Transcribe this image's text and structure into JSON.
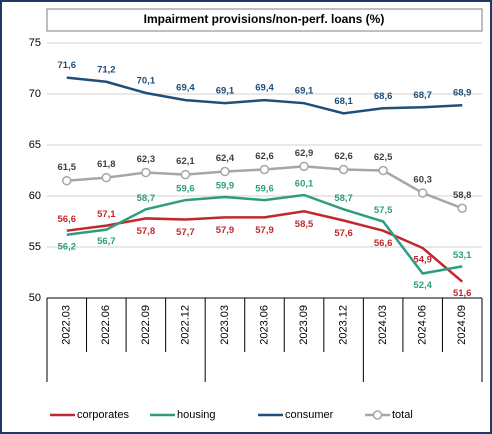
{
  "chart_data": {
    "type": "line",
    "title": "Impairment provisions/non-perf. loans (%)",
    "categories": [
      "2022.03",
      "2022.06",
      "2022.09",
      "2022.12",
      "2023.03",
      "2023.06",
      "2023.09",
      "2023.12",
      "2024.03",
      "2024.06",
      "2024.09"
    ],
    "series": [
      {
        "name": "corporates",
        "color": "#c0282d",
        "values": [
          56.6,
          57.1,
          57.8,
          57.7,
          57.9,
          57.9,
          58.5,
          57.6,
          56.6,
          54.9,
          51.6
        ],
        "value_labels": [
          "56,6",
          "57,1",
          "57,8",
          "57,7",
          "57,9",
          "57,9",
          "58,5",
          "57,6",
          "56,6",
          "54,9",
          "51,6"
        ]
      },
      {
        "name": "housing",
        "color": "#2e9e7a",
        "values": [
          56.2,
          56.7,
          58.7,
          59.6,
          59.9,
          59.6,
          60.1,
          58.7,
          57.5,
          52.4,
          53.1
        ],
        "value_labels": [
          "56,2",
          "56,7",
          "58,7",
          "59,6",
          "59,9",
          "59,6",
          "60,1",
          "58,7",
          "57,5",
          "52,4",
          "53,1"
        ]
      },
      {
        "name": "consumer",
        "color": "#1f4e79",
        "values": [
          71.6,
          71.2,
          70.1,
          69.4,
          69.1,
          69.4,
          69.1,
          68.1,
          68.6,
          68.7,
          68.9
        ],
        "value_labels": [
          "71,6",
          "71,2",
          "70,1",
          "69,4",
          "69,1",
          "69,4",
          "69,1",
          "68,1",
          "68,6",
          "68,7",
          "68,9"
        ]
      },
      {
        "name": "total",
        "color": "#a6a6a6",
        "values": [
          61.5,
          61.8,
          62.3,
          62.1,
          62.4,
          62.6,
          62.9,
          62.6,
          62.5,
          60.3,
          58.8
        ],
        "value_labels": [
          "61,5",
          "61,8",
          "62,3",
          "62,1",
          "62,4",
          "62,6",
          "62,9",
          "62,6",
          "62,5",
          "60,3",
          "58,8"
        ]
      }
    ],
    "ylim": [
      50,
      75
    ],
    "yticks": [
      50,
      55,
      60,
      65,
      70,
      75
    ],
    "grid": true,
    "legend": "bottom"
  }
}
